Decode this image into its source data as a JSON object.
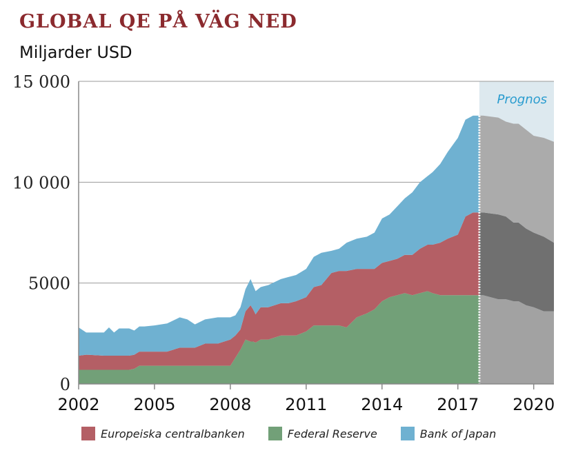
{
  "header": {
    "title": "GLOBAL QE PÅ VÄG NED",
    "subtitle": "Miljarder USD"
  },
  "chart_data": {
    "type": "area",
    "stacked": true,
    "title": "GLOBAL QE PÅ VÄG NED",
    "ylabel": "Miljarder USD",
    "xlim": [
      2002,
      2020.8
    ],
    "ylim": [
      0,
      15000
    ],
    "x_ticks": [
      2002,
      2005,
      2008,
      2011,
      2014,
      2017,
      2020
    ],
    "y_ticks": [
      {
        "value": 0,
        "label": "0"
      },
      {
        "value": 5000,
        "label": "5000"
      },
      {
        "value": 10000,
        "label": "10 000"
      },
      {
        "value": 15000,
        "label": "15 000"
      }
    ],
    "grid": "horizontal",
    "forecast": {
      "label": "Prognos",
      "start": 2017.85,
      "end": 2020.8
    },
    "x": [
      2002.0,
      2002.3,
      2003.0,
      2003.2,
      2003.4,
      2003.6,
      2004.0,
      2004.2,
      2004.4,
      2004.6,
      2005.0,
      2005.5,
      2006.0,
      2006.3,
      2006.6,
      2007.0,
      2007.5,
      2008.0,
      2008.2,
      2008.4,
      2008.6,
      2008.8,
      2008.9,
      2009.0,
      2009.2,
      2009.5,
      2010.0,
      2010.3,
      2010.6,
      2011.0,
      2011.3,
      2011.6,
      2012.0,
      2012.3,
      2012.6,
      2013.0,
      2013.4,
      2013.7,
      2014.0,
      2014.3,
      2014.6,
      2014.9,
      2015.2,
      2015.5,
      2015.8,
      2016.0,
      2016.3,
      2016.6,
      2017.0,
      2017.3,
      2017.6,
      2017.85
    ],
    "series": [
      {
        "name": "Federal Reserve",
        "color": "#72a078",
        "values": [
          700,
          700,
          700,
          700,
          700,
          700,
          700,
          750,
          900,
          900,
          900,
          900,
          900,
          900,
          900,
          900,
          900,
          900,
          1300,
          1700,
          2200,
          2100,
          2100,
          2050,
          2200,
          2200,
          2400,
          2400,
          2400,
          2600,
          2900,
          2900,
          2900,
          2900,
          2800,
          3300,
          3500,
          3700,
          4100,
          4300,
          4400,
          4500,
          4400,
          4500,
          4600,
          4500,
          4400,
          4400,
          4400,
          4400,
          4400,
          4400
        ]
      },
      {
        "name": "Europeiska centralbanken",
        "color": "#b45f65",
        "values": [
          700,
          750,
          700,
          700,
          700,
          700,
          700,
          700,
          700,
          700,
          700,
          700,
          900,
          900,
          900,
          1100,
          1100,
          1300,
          1100,
          1000,
          1400,
          1800,
          1600,
          1400,
          1600,
          1600,
          1600,
          1600,
          1700,
          1700,
          1900,
          2000,
          2600,
          2700,
          2800,
          2400,
          2200,
          2000,
          1900,
          1800,
          1800,
          1900,
          2000,
          2200,
          2300,
          2400,
          2600,
          2800,
          3000,
          3900,
          4100,
          4100
        ]
      },
      {
        "name": "Bank of Japan",
        "color": "#6fb1d1",
        "values": [
          1400,
          1100,
          1150,
          1400,
          1150,
          1350,
          1350,
          1200,
          1250,
          1250,
          1300,
          1400,
          1500,
          1400,
          1150,
          1200,
          1300,
          1100,
          1000,
          1100,
          1100,
          1300,
          1200,
          1150,
          1000,
          1100,
          1200,
          1300,
          1300,
          1400,
          1500,
          1600,
          1100,
          1100,
          1400,
          1500,
          1600,
          1800,
          2200,
          2300,
          2600,
          2800,
          3100,
          3300,
          3400,
          3600,
          3900,
          4300,
          4800,
          4800,
          4800,
          4800
        ]
      }
    ],
    "forecast_x": [
      2017.85,
      2018.0,
      2018.6,
      2018.9,
      2019.2,
      2019.4,
      2019.7,
      2020.0,
      2020.4,
      2020.8
    ],
    "forecast_series": [
      {
        "name": "Federal Reserve",
        "color": "#a2a2a2",
        "values": [
          4400,
          4400,
          4200,
          4200,
          4100,
          4100,
          3900,
          3800,
          3600,
          3600
        ]
      },
      {
        "name": "Europeiska centralbanken",
        "color": "#707070",
        "values": [
          4100,
          4100,
          4200,
          4100,
          3900,
          3900,
          3800,
          3700,
          3700,
          3400
        ]
      },
      {
        "name": "Bank of Japan",
        "color": "#ababab",
        "values": [
          4800,
          4800,
          4800,
          4700,
          4900,
          4900,
          4900,
          4800,
          4900,
          5000
        ]
      }
    ],
    "legend_placement": "bottom",
    "legend": [
      {
        "name": "Europeiska centralbanken",
        "color": "#b45f65"
      },
      {
        "name": "Federal Reserve",
        "color": "#72a078"
      },
      {
        "name": "Bank of Japan",
        "color": "#6fb1d1"
      }
    ]
  }
}
